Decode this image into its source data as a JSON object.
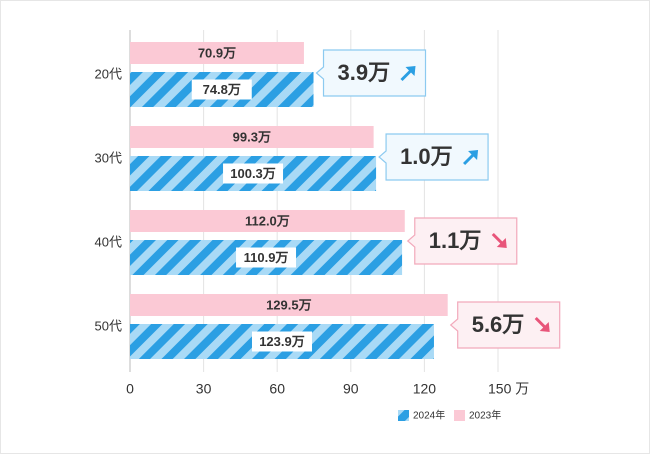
{
  "chart_data": {
    "type": "hbar",
    "categories": [
      "20代",
      "30代",
      "40代",
      "50代"
    ],
    "series": [
      {
        "name": "2024年",
        "color": "#2b9fe3",
        "values": [
          74.8,
          100.3,
          110.9,
          123.9
        ],
        "value_labels": [
          "74.8万",
          "100.3万",
          "110.9万",
          "123.9万"
        ]
      },
      {
        "name": "2023年",
        "color": "#fbc9d5",
        "values": [
          70.9,
          99.3,
          112.0,
          129.5
        ],
        "value_labels": [
          "70.9万",
          "99.3万",
          "112.0万",
          "129.5万"
        ]
      }
    ],
    "xlim": [
      0,
      150
    ],
    "xticks": [
      0,
      30,
      60,
      90,
      120,
      {
        "value": 150,
        "label": "150 万"
      }
    ],
    "grid": true,
    "annotations": [
      {
        "label": "3.9万",
        "color": "#1d5f8e"
      },
      {
        "label": "1.0万",
        "color": "#1d5f8e"
      },
      {
        "label": "1.1万",
        "color": "#c4173f"
      },
      {
        "label": "5.6万",
        "color": "#c4173f"
      }
    ]
  }
}
